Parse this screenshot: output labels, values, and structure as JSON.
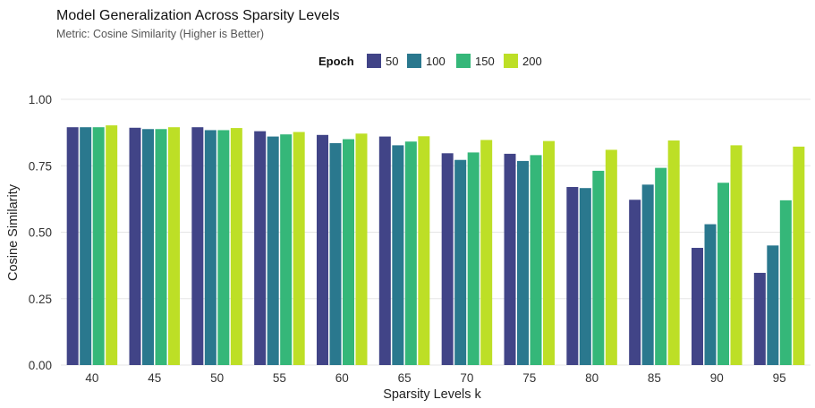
{
  "chart_data": {
    "type": "bar",
    "title": "Model Generalization Across Sparsity Levels",
    "subtitle": "Metric: Cosine Similarity (Higher is Better)",
    "xlabel": "Sparsity Levels k",
    "ylabel": "Cosine Similarity",
    "ylim": [
      0,
      1.05
    ],
    "yticks": [
      0.0,
      0.25,
      0.5,
      0.75,
      1.0
    ],
    "ytick_labels": [
      "0.00",
      "0.25",
      "0.50",
      "0.75",
      "1.00"
    ],
    "grid": true,
    "legend": {
      "title": "Epoch",
      "position": "top"
    },
    "categories": [
      "40",
      "45",
      "50",
      "55",
      "60",
      "65",
      "70",
      "75",
      "80",
      "85",
      "90",
      "95"
    ],
    "series": [
      {
        "name": "50",
        "color": "#414487",
        "values": [
          0.895,
          0.893,
          0.895,
          0.88,
          0.866,
          0.86,
          0.797,
          0.795,
          0.67,
          0.622,
          0.441,
          0.347
        ]
      },
      {
        "name": "100",
        "color": "#2a788e",
        "values": [
          0.895,
          0.888,
          0.884,
          0.86,
          0.835,
          0.827,
          0.772,
          0.768,
          0.666,
          0.679,
          0.53,
          0.45
        ]
      },
      {
        "name": "150",
        "color": "#35b779",
        "values": [
          0.895,
          0.888,
          0.884,
          0.868,
          0.85,
          0.841,
          0.8,
          0.79,
          0.731,
          0.742,
          0.686,
          0.62
        ]
      },
      {
        "name": "200",
        "color": "#bddf26",
        "values": [
          0.902,
          0.895,
          0.892,
          0.877,
          0.871,
          0.861,
          0.847,
          0.843,
          0.81,
          0.845,
          0.827,
          0.822
        ]
      }
    ]
  }
}
